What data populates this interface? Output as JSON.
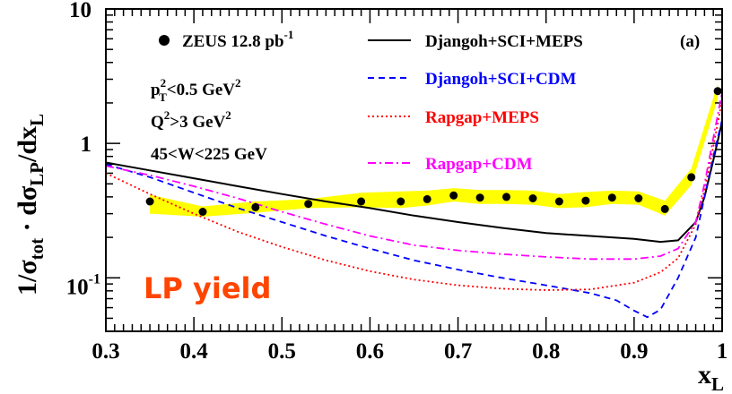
{
  "chart_data": {
    "type": "line",
    "panel_tag": "(a)",
    "xlabel_main": "x",
    "xlabel_sub": "L",
    "ylabel_parts": [
      "1/σ",
      "tot",
      " · dσ",
      "LP",
      "/dx",
      "L"
    ],
    "xlim": [
      0.3,
      1.0
    ],
    "ylim": [
      0.04,
      10
    ],
    "yscale": "log",
    "x_ticks": [
      0.3,
      0.4,
      0.5,
      0.6,
      0.7,
      0.8,
      0.9,
      1
    ],
    "x_tick_labels": [
      "0.3",
      "0.4",
      "0.5",
      "0.6",
      "0.7",
      "0.8",
      "0.9",
      "1"
    ],
    "y_ticks": [
      {
        "value": 10,
        "base": "10",
        "exp": ""
      },
      {
        "value": 1,
        "base": "1",
        "exp": ""
      },
      {
        "value": 0.1,
        "base": "10",
        "exp": "-1"
      }
    ],
    "cuts": [
      {
        "a": "p",
        "sup": "2",
        "sub": "T",
        "b": "<0.5 GeV",
        "sup2": "2"
      },
      {
        "a": "Q",
        "sup": "2",
        "sub": "",
        "b": ">3 GeV",
        "sup2": "2"
      },
      {
        "a": "45<W<225 GeV",
        "sup": "",
        "sub": "",
        "b": "",
        "sup2": ""
      }
    ],
    "annotation": {
      "text": "LP yield",
      "color": "#ff4500"
    },
    "data_series": {
      "name": "ZEUS 12.8 pb",
      "name_sup": "-1",
      "x": [
        0.35,
        0.41,
        0.47,
        0.53,
        0.59,
        0.635,
        0.665,
        0.695,
        0.725,
        0.755,
        0.785,
        0.815,
        0.845,
        0.875,
        0.905,
        0.935,
        0.965,
        0.995
      ],
      "y": [
        0.37,
        0.31,
        0.335,
        0.355,
        0.37,
        0.37,
        0.385,
        0.41,
        0.395,
        0.4,
        0.39,
        0.37,
        0.375,
        0.395,
        0.39,
        0.325,
        0.56,
        2.45
      ],
      "band_upper": [
        0.415,
        0.34,
        0.37,
        0.385,
        0.43,
        0.44,
        0.445,
        0.465,
        0.45,
        0.45,
        0.445,
        0.42,
        0.435,
        0.445,
        0.44,
        0.375,
        0.65,
        2.8
      ],
      "band_lower": [
        0.3,
        0.285,
        0.305,
        0.33,
        0.335,
        0.33,
        0.345,
        0.37,
        0.355,
        0.355,
        0.35,
        0.33,
        0.335,
        0.355,
        0.35,
        0.29,
        0.49,
        2.15
      ],
      "color": "#000000",
      "band_color": "#ffff00"
    },
    "series": [
      {
        "name": "Djangoh+SCI+MEPS",
        "color": "#000000",
        "dash": "",
        "x": [
          0.3,
          0.35,
          0.4,
          0.45,
          0.5,
          0.55,
          0.6,
          0.65,
          0.7,
          0.75,
          0.8,
          0.85,
          0.9,
          0.93,
          0.95,
          0.97,
          0.98,
          0.99,
          1.0
        ],
        "y": [
          0.72,
          0.63,
          0.55,
          0.48,
          0.42,
          0.37,
          0.33,
          0.29,
          0.26,
          0.235,
          0.215,
          0.205,
          0.195,
          0.185,
          0.19,
          0.26,
          0.4,
          0.75,
          1.45
        ]
      },
      {
        "name": "Djangoh+SCI+CDM",
        "color": "#0000ff",
        "dash": "7,5",
        "x": [
          0.3,
          0.35,
          0.4,
          0.45,
          0.5,
          0.55,
          0.6,
          0.65,
          0.7,
          0.75,
          0.8,
          0.85,
          0.88,
          0.9,
          0.915,
          0.93,
          0.95,
          0.97,
          0.98,
          0.99,
          1.0
        ],
        "y": [
          0.7,
          0.56,
          0.43,
          0.33,
          0.26,
          0.205,
          0.165,
          0.135,
          0.115,
          0.1,
          0.088,
          0.077,
          0.068,
          0.057,
          0.051,
          0.058,
          0.1,
          0.2,
          0.4,
          0.8,
          1.5
        ]
      },
      {
        "name": "Rapgap+MEPS",
        "color": "#ff0000",
        "dash": "2,3",
        "x": [
          0.3,
          0.35,
          0.4,
          0.45,
          0.5,
          0.55,
          0.6,
          0.65,
          0.7,
          0.75,
          0.8,
          0.85,
          0.9,
          0.93,
          0.95,
          0.97,
          0.98,
          0.99,
          1.0
        ],
        "y": [
          0.6,
          0.42,
          0.3,
          0.22,
          0.17,
          0.135,
          0.112,
          0.097,
          0.088,
          0.083,
          0.081,
          0.082,
          0.092,
          0.11,
          0.14,
          0.25,
          0.45,
          0.95,
          2.1
        ]
      },
      {
        "name": "Rapgap+CDM",
        "color": "#ff00ff",
        "dash": "9,4,2,4",
        "x": [
          0.3,
          0.35,
          0.4,
          0.45,
          0.5,
          0.55,
          0.6,
          0.65,
          0.7,
          0.75,
          0.8,
          0.85,
          0.9,
          0.93,
          0.95,
          0.97,
          0.98,
          0.99,
          1.0
        ],
        "y": [
          0.68,
          0.58,
          0.48,
          0.39,
          0.31,
          0.25,
          0.205,
          0.175,
          0.16,
          0.15,
          0.143,
          0.138,
          0.138,
          0.145,
          0.165,
          0.26,
          0.5,
          1.1,
          2.4
        ]
      }
    ]
  }
}
